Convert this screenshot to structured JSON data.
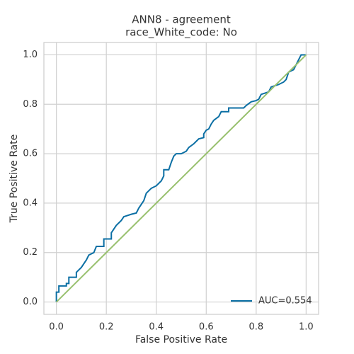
{
  "chart_data": {
    "type": "line",
    "title": [
      "ANN8 - agreement",
      "race_White_code: No"
    ],
    "xlabel": "False Positive Rate",
    "ylabel": "True Positive Rate",
    "xlim": [
      -0.05,
      1.05
    ],
    "ylim": [
      -0.05,
      1.05
    ],
    "xticks": [
      {
        "value": 0,
        "label": "0.0"
      },
      0.2,
      0.4,
      0.6,
      0.8,
      {
        "value": 1,
        "label": "1.0"
      }
    ],
    "yticks": [
      {
        "value": 0,
        "label": "0.0"
      },
      0.2,
      0.4,
      0.6,
      0.8,
      {
        "value": 1,
        "label": "1.0"
      }
    ],
    "grid": true,
    "legend": "lower right",
    "series": [
      {
        "name": "AUC=0.554",
        "color": "#0b6fa4",
        "x": [
          0,
          0,
          0.01,
          0.01,
          0.04,
          0.04,
          0.05,
          0.05,
          0.08,
          0.08,
          0.1,
          0.12,
          0.13,
          0.15,
          0.16,
          0.19,
          0.19,
          0.22,
          0.22,
          0.24,
          0.26,
          0.27,
          0.3,
          0.32,
          0.33,
          0.35,
          0.36,
          0.37,
          0.38,
          0.4,
          0.42,
          0.43,
          0.43,
          0.45,
          0.46,
          0.47,
          0.48,
          0.5,
          0.52,
          0.53,
          0.55,
          0.57,
          0.59,
          0.59,
          0.6,
          0.61,
          0.62,
          0.63,
          0.65,
          0.66,
          0.69,
          0.69,
          0.75,
          0.76,
          0.78,
          0.8,
          0.81,
          0.82,
          0.85,
          0.86,
          0.89,
          0.91,
          0.92,
          0.93,
          0.95,
          0.96,
          0.97,
          0.98,
          1.0
        ],
        "values": [
          0,
          0.04,
          0.04,
          0.065,
          0.065,
          0.075,
          0.075,
          0.1,
          0.1,
          0.12,
          0.14,
          0.17,
          0.19,
          0.2,
          0.225,
          0.225,
          0.255,
          0.255,
          0.28,
          0.31,
          0.33,
          0.345,
          0.355,
          0.36,
          0.38,
          0.41,
          0.44,
          0.45,
          0.46,
          0.47,
          0.49,
          0.51,
          0.535,
          0.535,
          0.565,
          0.59,
          0.6,
          0.6,
          0.61,
          0.625,
          0.64,
          0.66,
          0.665,
          0.68,
          0.695,
          0.7,
          0.72,
          0.735,
          0.75,
          0.77,
          0.77,
          0.785,
          0.785,
          0.795,
          0.81,
          0.815,
          0.82,
          0.84,
          0.85,
          0.87,
          0.88,
          0.89,
          0.9,
          0.93,
          0.94,
          0.96,
          0.98,
          1.0,
          1.0
        ]
      },
      {
        "color": "#98c06e",
        "x": [
          0,
          1
        ],
        "values": [
          0,
          1
        ]
      }
    ]
  }
}
